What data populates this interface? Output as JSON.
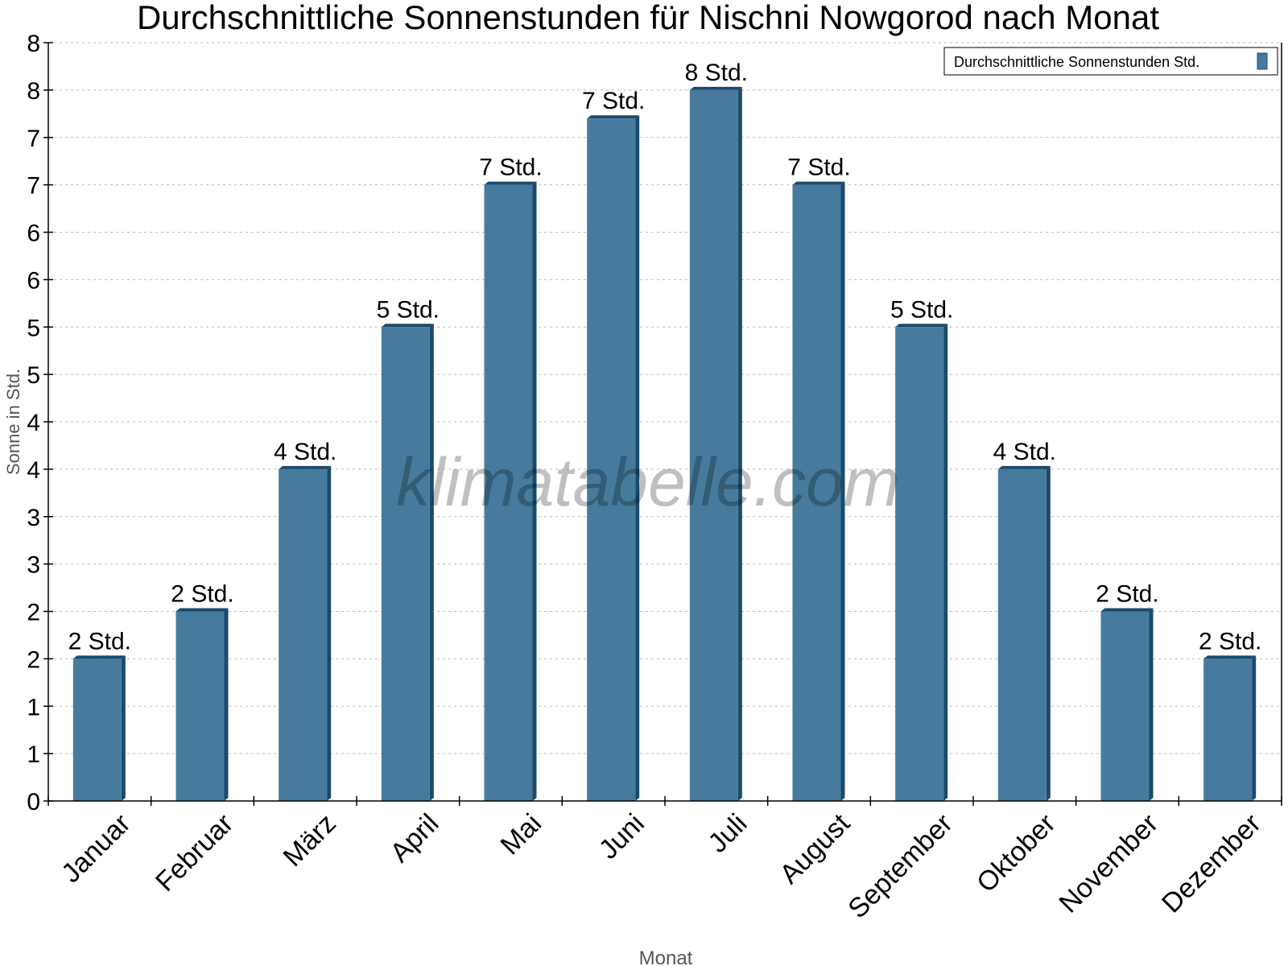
{
  "chart_data": {
    "type": "bar",
    "title": "Durchschnittliche Sonnenstunden für Nischni Nowgorod nach Monat",
    "xlabel": "Monat",
    "ylabel": "Sonne in Std.",
    "ylim": [
      0,
      8
    ],
    "yticks": [
      0,
      0.5,
      1,
      1.5,
      2,
      2.5,
      3,
      3.5,
      4,
      4.5,
      5,
      5.5,
      6,
      6.5,
      7,
      7.5,
      8
    ],
    "ytick_labels": [
      "0",
      "1",
      "1",
      "2",
      "2",
      "3",
      "3",
      "4",
      "4",
      "5",
      "5",
      "6",
      "6",
      "7",
      "7",
      "8",
      "8"
    ],
    "grid": true,
    "legend_position": "top-right",
    "categories": [
      "Januar",
      "Februar",
      "März",
      "April",
      "Mai",
      "Juni",
      "Juli",
      "August",
      "September",
      "Oktober",
      "November",
      "Dezember"
    ],
    "series": [
      {
        "name": "Durchschnittliche Sonnenstunden Std.",
        "color": "#467b9d",
        "values": [
          1.5,
          2.0,
          3.5,
          5.0,
          6.5,
          7.2,
          7.5,
          6.5,
          5.0,
          3.5,
          2.0,
          1.5
        ],
        "data_labels": [
          "2 Std.",
          "2 Std.",
          "4 Std.",
          "5 Std.",
          "7 Std.",
          "7 Std.",
          "8 Std.",
          "7 Std.",
          "5 Std.",
          "4 Std.",
          "2 Std.",
          "2 Std."
        ]
      }
    ],
    "watermark": "klimatabelle.com"
  }
}
